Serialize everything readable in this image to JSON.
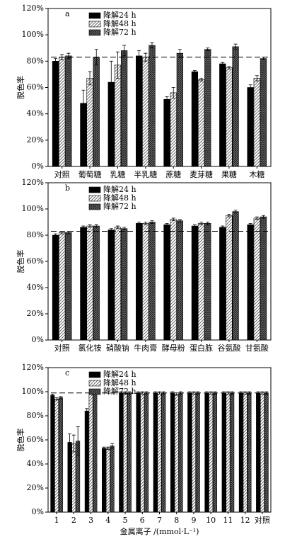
{
  "chart_data": [
    {
      "type": "bar",
      "panel_label": "a",
      "ylabel": "脱色率",
      "categories": [
        "对照",
        "葡萄糖",
        "乳糖",
        "半乳糖",
        "蔗糖",
        "麦芽糖",
        "果糖",
        "木糖"
      ],
      "series": [
        {
          "name": "降解24 h",
          "color": "#000000",
          "pattern": "solid",
          "values": [
            80,
            48,
            64,
            84,
            51,
            72,
            78,
            60
          ],
          "errors": [
            2,
            10,
            16,
            4,
            2,
            1,
            1,
            2
          ]
        },
        {
          "name": "降解48 h",
          "color": "#555555",
          "pattern": "diagonal",
          "values": [
            83,
            67,
            77,
            83,
            56,
            66,
            75,
            67
          ],
          "errors": [
            2,
            5,
            10,
            3,
            4,
            1,
            1,
            2
          ]
        },
        {
          "name": "降解72 h",
          "color": "#333333",
          "pattern": "cross",
          "values": [
            84,
            83,
            88,
            92,
            86,
            89,
            91,
            82
          ],
          "errors": [
            2,
            6,
            4,
            2,
            3,
            1,
            2,
            1
          ]
        }
      ],
      "ylim": [
        0,
        120
      ],
      "yticks": [
        {
          "value": 0,
          "label": "0%"
        },
        {
          "value": 20,
          "label": "20%"
        },
        {
          "value": 40,
          "label": "40%"
        },
        {
          "value": 60,
          "label": "60%"
        },
        {
          "value": 80,
          "label": "80%"
        },
        {
          "value": 100,
          "label": "100%"
        },
        {
          "value": 120,
          "label": "120%"
        }
      ],
      "ref_line": 83,
      "legend": "upper left"
    },
    {
      "type": "bar",
      "panel_label": "b",
      "ylabel": "脱色率",
      "categories": [
        "对照",
        "氯化铵",
        "硝酸钠",
        "牛肉膏",
        "酵母粉",
        "蛋白胨",
        "谷氨酸",
        "甘氨酸"
      ],
      "series": [
        {
          "name": "降解24 h",
          "color": "#000000",
          "pattern": "solid",
          "values": [
            80,
            86,
            84,
            89,
            88,
            87,
            86,
            88
          ],
          "errors": [
            1,
            1,
            1,
            1,
            1,
            1,
            1,
            1
          ]
        },
        {
          "name": "降解48 h",
          "color": "#555555",
          "pattern": "diagonal",
          "values": [
            82,
            87,
            86,
            89,
            92,
            89,
            95,
            93
          ],
          "errors": [
            1,
            1,
            1,
            1,
            1,
            1,
            1,
            1
          ]
        },
        {
          "name": "降解72 h",
          "color": "#333333",
          "pattern": "cross",
          "values": [
            82,
            87,
            85,
            90,
            91,
            89,
            98,
            94
          ],
          "errors": [
            1,
            1,
            1,
            1,
            1,
            1,
            1,
            1
          ]
        }
      ],
      "ylim": [
        0,
        120
      ],
      "yticks": [
        {
          "value": 0,
          "label": "0%"
        },
        {
          "value": 20,
          "label": "20%"
        },
        {
          "value": 40,
          "label": "40%"
        },
        {
          "value": 60,
          "label": "60%"
        },
        {
          "value": 80,
          "label": "80%"
        },
        {
          "value": 100,
          "label": "100%"
        },
        {
          "value": 120,
          "label": "120%"
        }
      ],
      "ref_line": 83,
      "legend": "upper left"
    },
    {
      "type": "bar",
      "panel_label": "c",
      "ylabel": "脱色率",
      "xlabel": "金属离子 /(mmol·L⁻¹)",
      "categories": [
        "1",
        "2",
        "3",
        "4",
        "5",
        "6",
        "7",
        "8",
        "9",
        "10",
        "11",
        "12",
        "对照"
      ],
      "series": [
        {
          "name": "降解24 h",
          "color": "#000000",
          "pattern": "solid",
          "values": [
            97,
            58,
            84,
            53,
            99,
            99,
            99,
            99,
            99,
            99,
            99,
            99,
            99
          ],
          "errors": [
            1,
            7,
            2,
            1,
            1,
            1,
            1,
            1,
            1,
            1,
            1,
            1,
            1
          ]
        },
        {
          "name": "降解48 h",
          "color": "#555555",
          "pattern": "diagonal",
          "values": [
            94,
            57,
            99,
            53,
            99,
            99,
            99,
            98,
            99,
            99,
            99,
            99,
            99
          ],
          "errors": [
            1,
            7,
            1,
            1,
            1,
            1,
            1,
            1,
            1,
            1,
            1,
            1,
            1
          ]
        },
        {
          "name": "降解72 h",
          "color": "#333333",
          "pattern": "cross",
          "values": [
            95,
            59,
            99,
            55,
            99,
            99,
            99,
            99,
            99,
            99,
            99,
            99,
            99
          ],
          "errors": [
            1,
            12,
            1,
            2,
            1,
            1,
            1,
            1,
            1,
            1,
            1,
            1,
            1
          ]
        }
      ],
      "ylim": [
        0,
        120
      ],
      "yticks": [
        {
          "value": 0,
          "label": "0%"
        },
        {
          "value": 20,
          "label": "20%"
        },
        {
          "value": 40,
          "label": "40%"
        },
        {
          "value": 60,
          "label": "60%"
        },
        {
          "value": 80,
          "label": "80%"
        },
        {
          "value": 100,
          "label": "100%"
        },
        {
          "value": 120,
          "label": "120%"
        }
      ],
      "ref_line": 99,
      "legend": "upper left"
    }
  ]
}
